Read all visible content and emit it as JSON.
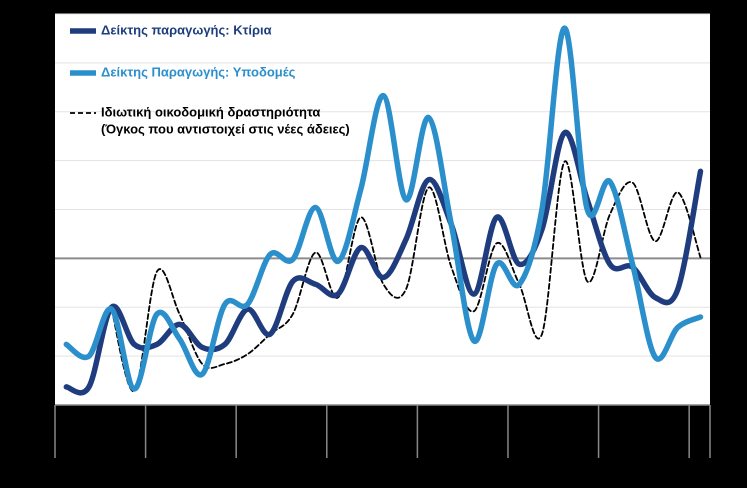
{
  "chart_data": {
    "type": "line",
    "x": [
      0.125,
      0.375,
      0.625,
      0.875,
      1.125,
      1.375,
      1.625,
      1.875,
      2.125,
      2.375,
      2.625,
      2.875,
      3.125,
      3.375,
      3.625,
      3.875,
      4.125,
      4.375,
      4.625,
      4.875,
      5.125,
      5.375,
      5.625,
      5.875,
      6.125,
      6.375,
      6.625,
      6.875,
      7.125
    ],
    "xlim": [
      0,
      7.23
    ],
    "xticks": [
      0,
      1,
      2,
      3,
      4,
      5,
      6,
      7,
      7.23
    ],
    "ylim": [
      -3,
      5
    ],
    "yticks": [
      -3,
      -2,
      -1,
      0,
      1,
      2,
      3,
      4,
      5
    ],
    "grid": true,
    "series": [
      {
        "name": "Δείκτης παραγωγής: Κτίρια",
        "color": "#1f3d7e",
        "dash": false,
        "values": [
          -2.63,
          -2.63,
          -1.0,
          -1.76,
          -1.76,
          -1.35,
          -1.82,
          -1.76,
          -1.04,
          -1.55,
          -0.47,
          -0.53,
          -0.73,
          0.22,
          -0.39,
          0.39,
          1.61,
          0.69,
          -0.73,
          0.84,
          -0.12,
          0.59,
          2.57,
          1.2,
          -0.12,
          -0.18,
          -0.8,
          -0.63,
          1.78
        ]
      },
      {
        "name": "Δείκτης Παραγωγής: Υποδομές",
        "color": "#2b8fcc",
        "dash": false,
        "values": [
          -1.76,
          -2.0,
          -1.04,
          -2.67,
          -1.14,
          -1.65,
          -2.37,
          -0.94,
          -0.94,
          0.08,
          -0.02,
          1.04,
          -0.06,
          1.41,
          3.33,
          1.2,
          2.88,
          0.69,
          -1.69,
          -0.12,
          -0.53,
          1.0,
          4.71,
          1.0,
          1.57,
          -0.12,
          -2.02,
          -1.41,
          -1.2
        ]
      },
      {
        "name": [
          "Ιδιωτική οικοδομική δραστηριότητα",
          "(Όγκος που αντιστοιχεί στις νέες άδειες)"
        ],
        "color": "#000000",
        "dash": true,
        "values": [
          null,
          null,
          -1.04,
          -2.71,
          -0.27,
          -1.14,
          -2.16,
          -2.16,
          -1.96,
          -1.55,
          -1.14,
          0.12,
          -0.8,
          0.84,
          -0.53,
          -0.63,
          1.45,
          -0.18,
          -1.08,
          0.31,
          -0.53,
          -1.55,
          1.98,
          -0.47,
          0.9,
          1.55,
          0.35,
          1.35,
          0.02
        ]
      }
    ]
  }
}
